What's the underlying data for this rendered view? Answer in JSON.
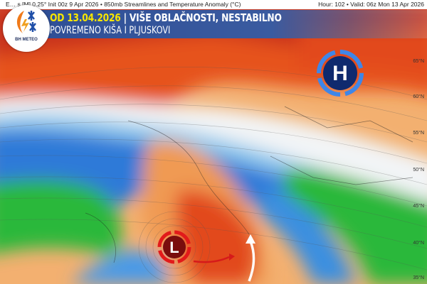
{
  "header": {
    "model_info": "E… s [M] 0.25° Init 00z 9 Apr 2026 • 850mb Streamlines and Temperature Anomaly (°C)",
    "valid_info": "Hour: 102 • Valid: 06z Mon 13 Apr 2026"
  },
  "banner": {
    "date": "OD 13.04.2026",
    "headline": " | VIŠE OBLAČNOSTI, NESTABILNO",
    "subline": "POVREMENO KIŠA I PLJUSKOVI"
  },
  "logo": {
    "text": "BH METEO"
  },
  "map": {
    "latitude_labels": [
      "65°N",
      "60°N",
      "55°N",
      "50°N",
      "45°N",
      "40°N",
      "35°N"
    ],
    "high_pressure_label": "H",
    "low_pressure_label": "L",
    "colors": {
      "warm_anomaly": "#e8431c",
      "cold_anomaly": "#2f7ad8",
      "neutral": "#f4f6f8",
      "very_cold": "#2bb83a",
      "banner": "#2f4f96",
      "date_highlight": "#f7e600"
    }
  }
}
